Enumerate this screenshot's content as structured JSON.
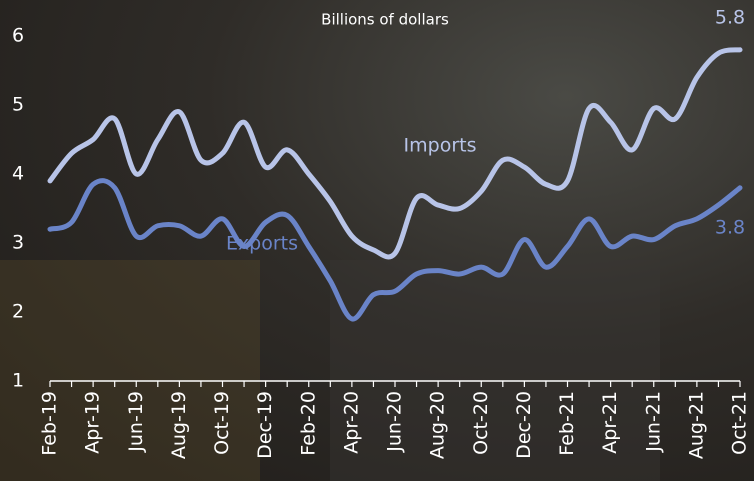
{
  "chart_data": {
    "type": "line",
    "subtitle": "Billions of dollars",
    "categories": [
      "Feb-19",
      null,
      "Apr-19",
      null,
      "Jun-19",
      null,
      "Aug-19",
      null,
      "Oct-19",
      null,
      "Dec-19",
      null,
      "Feb-20",
      null,
      "Apr-20",
      null,
      "Jun-20",
      null,
      "Aug-20",
      null,
      "Oct-20",
      null,
      "Dec-20",
      null,
      "Feb-21",
      null,
      "Apr-21",
      null,
      "Jun-21",
      null,
      "Aug-21",
      null,
      "Oct-21"
    ],
    "series": [
      {
        "name": "Imports",
        "color": "#b8c4e8",
        "values": [
          3.9,
          4.3,
          4.5,
          4.8,
          4.0,
          4.5,
          4.9,
          4.2,
          4.3,
          4.75,
          4.1,
          4.35,
          4.0,
          3.6,
          3.1,
          2.9,
          2.85,
          3.65,
          3.55,
          3.5,
          3.75,
          4.2,
          4.1,
          3.85,
          3.9,
          4.95,
          4.75,
          4.35,
          4.95,
          4.8,
          5.4,
          5.75,
          5.8
        ]
      },
      {
        "name": "Exports",
        "color": "#6a84c8",
        "values": [
          3.2,
          3.3,
          3.85,
          3.8,
          3.1,
          3.25,
          3.25,
          3.1,
          3.35,
          2.95,
          3.3,
          3.4,
          2.95,
          2.45,
          1.9,
          2.25,
          2.3,
          2.55,
          2.6,
          2.55,
          2.65,
          2.55,
          3.05,
          2.65,
          2.95,
          3.35,
          2.95,
          3.1,
          3.05,
          3.25,
          3.35,
          3.55,
          3.8
        ]
      }
    ],
    "ylim": [
      1,
      6
    ],
    "yticks": [
      1,
      2,
      3,
      4,
      5,
      6
    ],
    "grid": false
  }
}
